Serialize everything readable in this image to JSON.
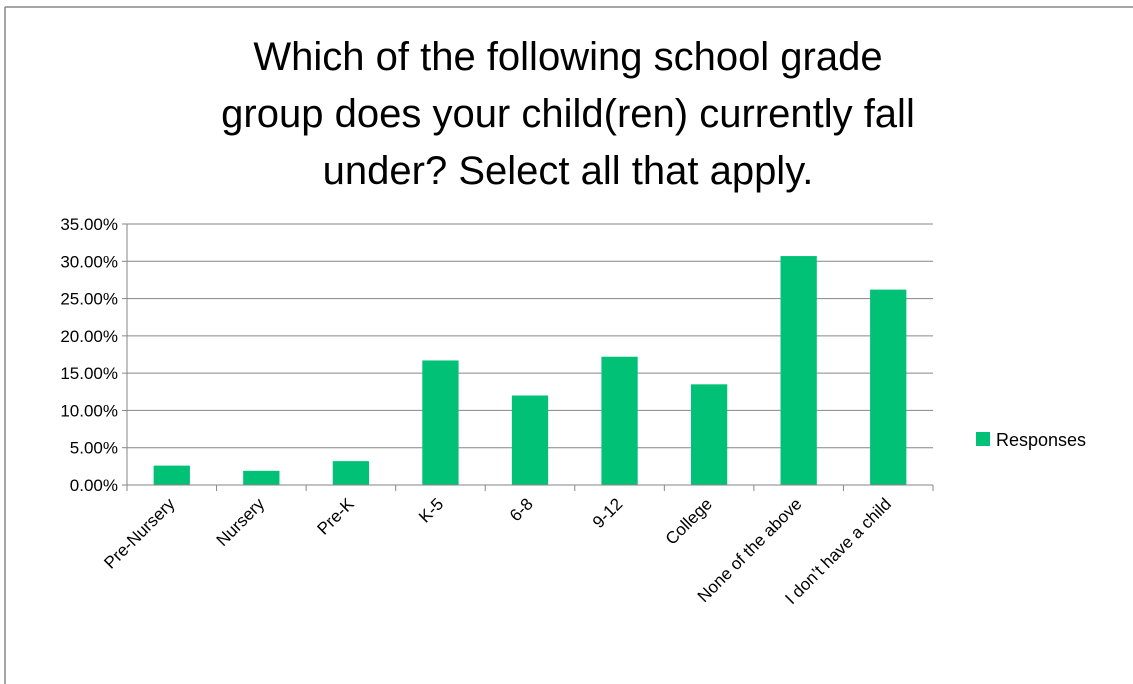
{
  "chart_data": {
    "type": "bar",
    "title_lines": [
      "Which of the following school grade",
      "group does your child(ren) currently fall",
      "under? Select all that apply."
    ],
    "categories": [
      "Pre-Nursery",
      "Nursery",
      "Pre-K",
      "K-5",
      "6-8",
      "9-12",
      "College",
      "None of the above",
      "I don’t have a child"
    ],
    "series": [
      {
        "name": "Responses",
        "color": "#00c176",
        "values": [
          2.6,
          1.9,
          3.2,
          16.7,
          12.0,
          17.2,
          13.5,
          30.7,
          26.2
        ]
      }
    ],
    "ylim": [
      0,
      35
    ],
    "yticks": [
      "0.00%",
      "5.00%",
      "10.00%",
      "15.00%",
      "20.00%",
      "25.00%",
      "30.00%",
      "35.00%"
    ],
    "grid": true,
    "legend_position": "right"
  }
}
